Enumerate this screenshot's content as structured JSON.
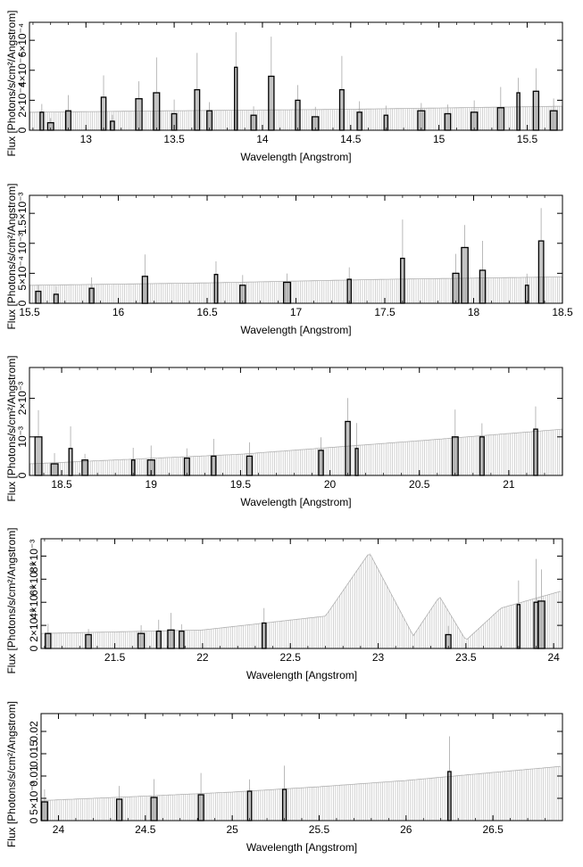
{
  "chart_data": [
    {
      "type": "line",
      "xlabel": "Wavelength [Angstrom]",
      "ylabel": "Flux [Photons/s/cm²/Angstrom]",
      "xlim": [
        12.68,
        15.7
      ],
      "ylim": [
        0,
        0.00072
      ],
      "x_ticks": [
        {
          "value": 13,
          "label": "13"
        },
        {
          "value": 13.5,
          "label": "13.5"
        },
        {
          "value": 14,
          "label": "14"
        },
        {
          "value": 14.5,
          "label": "14.5"
        },
        {
          "value": 15,
          "label": "15"
        },
        {
          "value": 15.5,
          "label": "15.5"
        }
      ],
      "y_ticks": [
        {
          "value": 0,
          "label": "0"
        },
        {
          "value": 0.0002,
          "label": "2×10⁻⁴"
        },
        {
          "value": 0.0004,
          "label": "4×10⁻⁴"
        },
        {
          "value": 0.0006,
          "label": "6×10⁻⁴"
        }
      ],
      "model": {
        "x": [
          12.68,
          13.5,
          14.5,
          15.7
        ],
        "y": [
          0.00012,
          0.00013,
          0.00014,
          0.00016
        ]
      },
      "series": [
        {
          "x": [
            12.75,
            12.8,
            12.9,
            13.1,
            13.15,
            13.3,
            13.4,
            13.5,
            13.63,
            13.7,
            13.85,
            13.95,
            14.05,
            14.2,
            14.3,
            14.45,
            14.55,
            14.7,
            14.9,
            15.05,
            15.2,
            15.35,
            15.45,
            15.55,
            15.65
          ],
          "y": [
            0.00012,
            5e-05,
            0.00013,
            0.00022,
            6e-05,
            0.00021,
            0.00025,
            0.00011,
            0.00027,
            0.00013,
            0.00042,
            0.0001,
            0.00036,
            0.0002,
            9e-05,
            0.00027,
            0.00012,
            0.0001,
            0.00013,
            0.00011,
            0.00012,
            0.00015,
            0.00025,
            0.00026,
            0.00013
          ]
        }
      ]
    },
    {
      "type": "line",
      "xlabel": "Wavelength [Angstrom]",
      "ylabel": "Flux [Photons/s/cm²/Angstrom]",
      "xlim": [
        15.5,
        18.5
      ],
      "ylim": [
        0,
        0.0018
      ],
      "x_ticks": [
        {
          "value": 15.5,
          "label": "15.5"
        },
        {
          "value": 16,
          "label": "16"
        },
        {
          "value": 16.5,
          "label": "16.5"
        },
        {
          "value": 17,
          "label": "17"
        },
        {
          "value": 17.5,
          "label": "17.5"
        },
        {
          "value": 18,
          "label": "18"
        },
        {
          "value": 18.5,
          "label": "18.5"
        }
      ],
      "y_ticks": [
        {
          "value": 0,
          "label": "0"
        },
        {
          "value": 0.0005,
          "label": "5×10⁻⁴"
        },
        {
          "value": 0.001,
          "label": "10⁻³"
        },
        {
          "value": 0.0015,
          "label": "1.5×10⁻³"
        }
      ],
      "model": {
        "x": [
          15.5,
          16.5,
          17.5,
          18.5
        ],
        "y": [
          0.0003,
          0.00034,
          0.0004,
          0.00044
        ]
      },
      "series": [
        {
          "x": [
            15.55,
            15.65,
            15.85,
            16.15,
            16.55,
            16.7,
            16.95,
            17.3,
            17.6,
            17.9,
            17.95,
            18.05,
            18.3,
            18.38
          ],
          "y": [
            0.0002,
            0.00015,
            0.00025,
            0.00045,
            0.00048,
            0.0003,
            0.00035,
            0.0004,
            0.00075,
            0.0005,
            0.00093,
            0.00055,
            0.0003,
            0.00104
          ]
        }
      ]
    },
    {
      "type": "line",
      "xlabel": "Wavelength [Angstrom]",
      "ylabel": "Flux [Photons/s/cm²/Angstrom]",
      "xlim": [
        18.32,
        21.3
      ],
      "ylim": [
        0,
        0.0028
      ],
      "x_ticks": [
        {
          "value": 18.5,
          "label": "18.5"
        },
        {
          "value": 19,
          "label": "19"
        },
        {
          "value": 19.5,
          "label": "19.5"
        },
        {
          "value": 20,
          "label": "20"
        },
        {
          "value": 20.5,
          "label": "20.5"
        },
        {
          "value": 21,
          "label": "21"
        }
      ],
      "y_ticks": [
        {
          "value": 0,
          "label": "0"
        },
        {
          "value": 0.001,
          "label": "10⁻³"
        },
        {
          "value": 0.002,
          "label": "2×10⁻³"
        }
      ],
      "model": {
        "x": [
          18.32,
          19.5,
          20.5,
          21.3
        ],
        "y": [
          0.0003,
          0.00055,
          0.0009,
          0.0012
        ]
      },
      "series": [
        {
          "x": [
            18.37,
            18.46,
            18.55,
            18.63,
            18.9,
            19.0,
            19.2,
            19.35,
            19.55,
            19.95,
            20.1,
            20.15,
            20.7,
            20.85,
            21.15
          ],
          "y": [
            0.001,
            0.0003,
            0.0007,
            0.0004,
            0.0004,
            0.0004,
            0.00045,
            0.0005,
            0.0005,
            0.00065,
            0.0014,
            0.0007,
            0.001,
            0.001,
            0.0012
          ]
        }
      ]
    },
    {
      "type": "line",
      "xlabel": "Wavelength [Angstrom]",
      "ylabel": "Flux [Photons/s/cm²/Angstrom]",
      "xlim": [
        21.08,
        24.05
      ],
      "ylim": [
        0,
        0.0095
      ],
      "x_ticks": [
        {
          "value": 21.5,
          "label": "21.5"
        },
        {
          "value": 22,
          "label": "22"
        },
        {
          "value": 22.5,
          "label": "22.5"
        },
        {
          "value": 23,
          "label": "23"
        },
        {
          "value": 23.5,
          "label": "23.5"
        },
        {
          "value": 24,
          "label": "24"
        }
      ],
      "y_ticks": [
        {
          "value": 0,
          "label": "0"
        },
        {
          "value": 0.002,
          "label": "2×10⁻³"
        },
        {
          "value": 0.004,
          "label": "4×10⁻³"
        },
        {
          "value": 0.006,
          "label": "6×10⁻³"
        },
        {
          "value": 0.008,
          "label": "8×10⁻³"
        }
      ],
      "model": {
        "x": [
          21.08,
          22.0,
          22.7,
          22.95,
          23.2,
          23.35,
          23.5,
          23.7,
          24.05
        ],
        "y": [
          0.0013,
          0.0016,
          0.0028,
          0.0083,
          0.0011,
          0.0045,
          0.0007,
          0.0035,
          0.005
        ]
      },
      "series": [
        {
          "x": [
            21.12,
            21.35,
            21.65,
            21.75,
            21.82,
            21.88,
            22.35,
            23.4,
            23.8,
            23.9,
            23.93
          ],
          "y": [
            0.0013,
            0.0012,
            0.0013,
            0.0015,
            0.0016,
            0.0015,
            0.0022,
            0.0012,
            0.0038,
            0.004,
            0.0041
          ]
        }
      ]
    },
    {
      "type": "line",
      "xlabel": "Wavelength [Angstrom]",
      "ylabel": "Flux [Photons/s/cm²/Angstrom]",
      "xlim": [
        23.9,
        26.9
      ],
      "ylim": [
        0,
        0.024
      ],
      "x_ticks": [
        {
          "value": 24,
          "label": "24"
        },
        {
          "value": 24.5,
          "label": "24.5"
        },
        {
          "value": 25,
          "label": "25"
        },
        {
          "value": 25.5,
          "label": "25.5"
        },
        {
          "value": 26,
          "label": "26"
        },
        {
          "value": 26.5,
          "label": "26.5"
        }
      ],
      "y_ticks": [
        {
          "value": 0,
          "label": "0"
        },
        {
          "value": 0.005,
          "label": "5×10⁻³"
        },
        {
          "value": 0.01,
          "label": "0.01"
        },
        {
          "value": 0.015,
          "label": "0.015"
        },
        {
          "value": 0.02,
          "label": "0.02"
        }
      ],
      "model": {
        "x": [
          23.9,
          24.5,
          25.0,
          25.5,
          26.0,
          26.5,
          26.9
        ],
        "y": [
          0.0045,
          0.0055,
          0.0064,
          0.0076,
          0.009,
          0.0108,
          0.0122
        ]
      },
      "series": [
        {
          "x": [
            23.92,
            24.35,
            24.55,
            24.82,
            25.1,
            25.3,
            26.25
          ],
          "y": [
            0.0042,
            0.0048,
            0.0052,
            0.0058,
            0.0066,
            0.007,
            0.011
          ]
        }
      ]
    }
  ]
}
